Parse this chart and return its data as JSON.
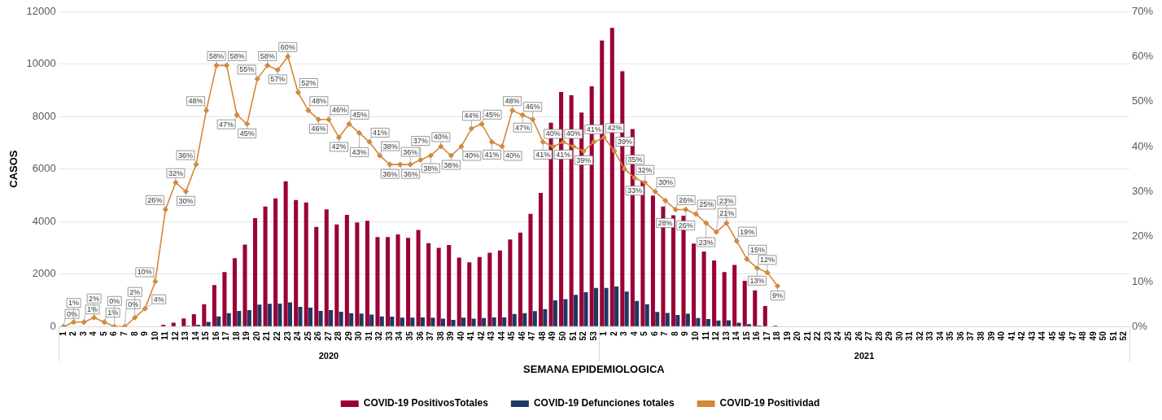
{
  "chart_data": {
    "type": "bar",
    "xlabel": "SEMANA EPIDEMIOLOGICA",
    "ylabel": "CASOS",
    "categories": [
      "1",
      "2",
      "3",
      "4",
      "5",
      "6",
      "7",
      "8",
      "9",
      "10",
      "11",
      "12",
      "13",
      "14",
      "15",
      "16",
      "17",
      "18",
      "19",
      "20",
      "21",
      "22",
      "23",
      "24",
      "25",
      "26",
      "27",
      "28",
      "29",
      "30",
      "31",
      "32",
      "33",
      "34",
      "35",
      "36",
      "37",
      "38",
      "39",
      "40",
      "41",
      "42",
      "43",
      "44",
      "45",
      "46",
      "47",
      "48",
      "49",
      "50",
      "51",
      "52",
      "53",
      "1",
      "2",
      "3",
      "4",
      "5",
      "6",
      "7",
      "8",
      "9",
      "10",
      "11",
      "12",
      "13",
      "14",
      "15",
      "16",
      "17",
      "18",
      "19",
      "20",
      "21",
      "22",
      "23",
      "24",
      "25",
      "26",
      "27",
      "28",
      "29",
      "30",
      "31",
      "32",
      "33",
      "34",
      "35",
      "36",
      "37",
      "38",
      "39",
      "40",
      "41",
      "42",
      "43",
      "44",
      "45",
      "46",
      "47",
      "48",
      "49",
      "50",
      "51",
      "52"
    ],
    "series": [
      {
        "name": "COVID-19 PositivosTotales",
        "color": "#9b0036",
        "values": [
          0,
          0,
          0,
          0,
          0,
          0,
          0,
          0,
          0,
          0,
          70,
          150,
          310,
          470,
          850,
          1580,
          2080,
          2600,
          3120,
          4130,
          4570,
          4880,
          5530,
          4820,
          4730,
          3800,
          4460,
          3890,
          4250,
          3970,
          4030,
          3410,
          3410,
          3510,
          3380,
          3680,
          3180,
          3000,
          3110,
          2630,
          2450,
          2650,
          2810,
          2900,
          3320,
          3580,
          4290,
          5090,
          7760,
          8930,
          8810,
          8150,
          9150,
          10890,
          11370,
          9720,
          7520,
          5530,
          4990,
          4570,
          4240,
          4220,
          3160,
          2860,
          2520,
          2080,
          2350,
          1740,
          1380,
          780,
          40,
          null,
          null,
          null,
          null,
          null,
          null,
          null,
          null,
          null,
          null,
          null,
          null,
          null,
          null,
          null,
          null,
          null,
          null,
          null,
          null,
          null,
          null,
          null,
          null,
          null,
          null,
          null,
          null,
          null,
          null,
          null,
          null,
          null,
          null
        ]
      },
      {
        "name": "COVID-19 Defunciones totales",
        "color": "#1f3864",
        "values": [
          0,
          0,
          0,
          0,
          0,
          0,
          0,
          0,
          0,
          0,
          0,
          0,
          30,
          70,
          180,
          390,
          510,
          600,
          630,
          840,
          870,
          880,
          920,
          750,
          720,
          600,
          630,
          570,
          510,
          500,
          460,
          390,
          380,
          340,
          340,
          350,
          340,
          300,
          260,
          340,
          300,
          330,
          350,
          350,
          480,
          510,
          590,
          670,
          1000,
          1050,
          1210,
          1310,
          1470,
          1470,
          1530,
          1330,
          980,
          850,
          560,
          520,
          440,
          490,
          330,
          290,
          230,
          240,
          150,
          90,
          40,
          null,
          null,
          null,
          null,
          null,
          null,
          null,
          null,
          null,
          null,
          null,
          null,
          null,
          null,
          null,
          null,
          null,
          null,
          null,
          null,
          null,
          null,
          null,
          null,
          null,
          null,
          null,
          null,
          null,
          null,
          null,
          null,
          null,
          null,
          null,
          null
        ]
      },
      {
        "name": "COVID-19 Positividad",
        "type": "line",
        "axis": "y2",
        "color": "#d4883a",
        "marker": "diamond",
        "values": [
          0,
          1,
          1,
          2,
          1,
          0,
          0,
          2,
          4,
          10,
          26,
          32,
          30,
          36,
          48,
          58,
          58,
          47,
          45,
          55,
          58,
          57,
          60,
          52,
          48,
          46,
          46,
          42,
          45,
          43,
          41,
          38,
          36,
          36,
          36,
          37,
          38,
          40,
          38,
          40,
          44,
          45,
          41,
          40,
          48,
          47,
          46,
          41,
          40,
          41,
          40,
          39,
          41,
          42,
          39,
          35,
          33,
          32,
          30,
          28,
          26,
          26,
          25,
          23,
          21,
          23,
          19,
          15,
          13,
          12,
          9,
          null,
          null,
          null,
          null,
          null,
          null,
          null,
          null,
          null,
          null,
          null,
          null,
          null,
          null,
          null,
          null,
          null,
          null,
          null,
          null,
          null,
          null,
          null,
          null,
          null,
          null,
          null,
          null,
          null,
          null,
          null,
          null,
          null,
          null
        ],
        "value_labels": [
          "0%",
          "1%",
          "1%",
          "2%",
          "1%",
          "0%",
          "0%",
          "2%",
          "4%",
          "10%",
          "26%",
          "32%",
          "30%",
          "36%",
          "48%",
          "58%",
          "58%",
          "47%",
          "45%",
          "55%",
          "58%",
          "57%",
          "60%",
          "52%",
          "48%",
          "46%",
          "46%",
          "42%",
          "45%",
          "43%",
          "41%",
          "38%",
          "36%",
          "36%",
          "36%",
          "37%",
          "38%",
          "40%",
          "38%",
          "40%",
          "44%",
          "45%",
          "41%",
          "40%",
          "48%",
          "47%",
          "46%",
          "41%",
          "40%",
          "41%",
          "40%",
          "39%",
          "41%",
          "42%",
          "39%",
          "35%",
          "33%",
          "32%",
          "30%",
          "28%",
          "26%",
          "26%",
          "25%",
          "23%",
          "21%",
          "23%",
          "19%",
          "15%",
          "13%",
          "12%",
          "9%",
          null,
          null,
          null,
          null,
          null,
          null,
          null,
          null,
          null,
          null,
          null,
          null,
          null,
          null,
          null,
          null,
          null,
          null,
          null,
          null,
          null,
          null,
          null,
          null,
          null,
          null,
          null,
          null,
          null,
          null,
          null,
          null,
          null,
          null
        ]
      }
    ],
    "ylim": [
      0,
      12000
    ],
    "yticks": [
      0,
      2000,
      4000,
      6000,
      8000,
      10000,
      12000
    ],
    "y2lim": [
      0,
      70
    ],
    "y2ticks": [
      {
        "value": 0,
        "label": "0%"
      },
      {
        "value": 10,
        "label": "10%"
      },
      {
        "value": 20,
        "label": "20%"
      },
      {
        "value": 30,
        "label": "30%"
      },
      {
        "value": 40,
        "label": "40%"
      },
      {
        "value": 50,
        "label": "50%"
      },
      {
        "value": 60,
        "label": "60%"
      },
      {
        "value": 70,
        "label": "70%"
      }
    ],
    "annotations": [
      "2020",
      "2021"
    ],
    "grid": "y",
    "legend": "bottom"
  }
}
